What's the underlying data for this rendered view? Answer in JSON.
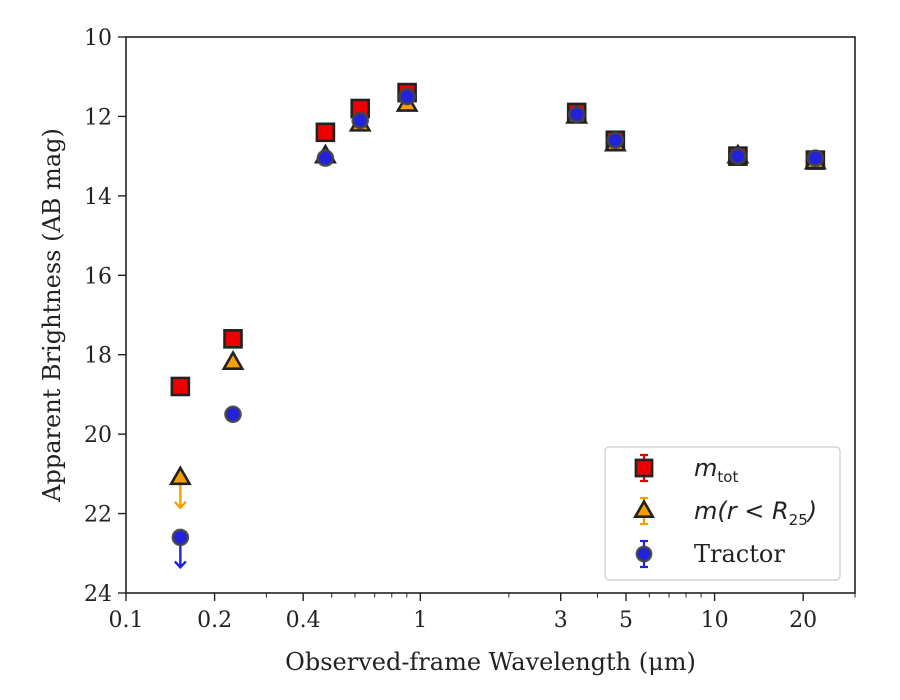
{
  "chart_data": {
    "type": "scatter",
    "xlabel": "Observed-frame Wavelength (μm)",
    "ylabel": "Apparent Brightness (AB mag)",
    "xscale": "log",
    "xlim": [
      0.1,
      30
    ],
    "ylim": [
      24,
      10
    ],
    "y_inverted": true,
    "x_ticks": [
      0.1,
      0.2,
      0.4,
      1,
      3,
      5,
      10,
      20
    ],
    "x_tick_labels": [
      "0.1",
      "0.2",
      "0.4",
      "1",
      "3",
      "5",
      "10",
      "20"
    ],
    "y_ticks": [
      10,
      12,
      14,
      16,
      18,
      20,
      22,
      24
    ],
    "y_tick_labels": [
      "10",
      "12",
      "14",
      "16",
      "18",
      "20",
      "22",
      "24"
    ],
    "grid": false,
    "legend_position": "lower-right",
    "series": [
      {
        "name": "m_tot",
        "legend_main": "m",
        "legend_sub": "tot",
        "marker": "square",
        "color": "#ee0000",
        "edge": "#222222",
        "x": [
          0.153,
          0.231,
          0.476,
          0.625,
          0.902,
          3.4,
          4.6,
          12.0,
          22.0
        ],
        "y": [
          18.8,
          17.6,
          12.4,
          11.8,
          11.4,
          11.9,
          12.6,
          13.0,
          13.1
        ],
        "upper_limit": [
          false,
          false,
          false,
          false,
          false,
          false,
          false,
          false,
          false
        ]
      },
      {
        "name": "m(r < R25)",
        "legend_main": "m(r < R",
        "legend_sub": "25",
        "legend_tail": ")",
        "marker": "triangle",
        "color": "#f5a000",
        "edge": "#222222",
        "x": [
          0.153,
          0.231,
          0.476,
          0.625,
          0.902,
          3.4,
          4.6,
          12.0,
          22.0
        ],
        "y": [
          21.1,
          18.2,
          13.0,
          12.2,
          11.7,
          12.0,
          12.7,
          13.0,
          13.15
        ],
        "upper_limit": [
          true,
          false,
          false,
          false,
          false,
          false,
          false,
          false,
          false
        ]
      },
      {
        "name": "Tractor",
        "legend_main": "Tractor",
        "marker": "circle",
        "color": "#2222dd",
        "edge": "#444444",
        "x": [
          0.153,
          0.231,
          0.476,
          0.625,
          0.902,
          3.4,
          4.6,
          12.0,
          22.0
        ],
        "y": [
          22.6,
          19.5,
          13.05,
          12.1,
          11.5,
          11.95,
          12.6,
          13.0,
          13.05
        ],
        "upper_limit": [
          true,
          false,
          false,
          false,
          false,
          false,
          false,
          false,
          false
        ]
      }
    ]
  }
}
